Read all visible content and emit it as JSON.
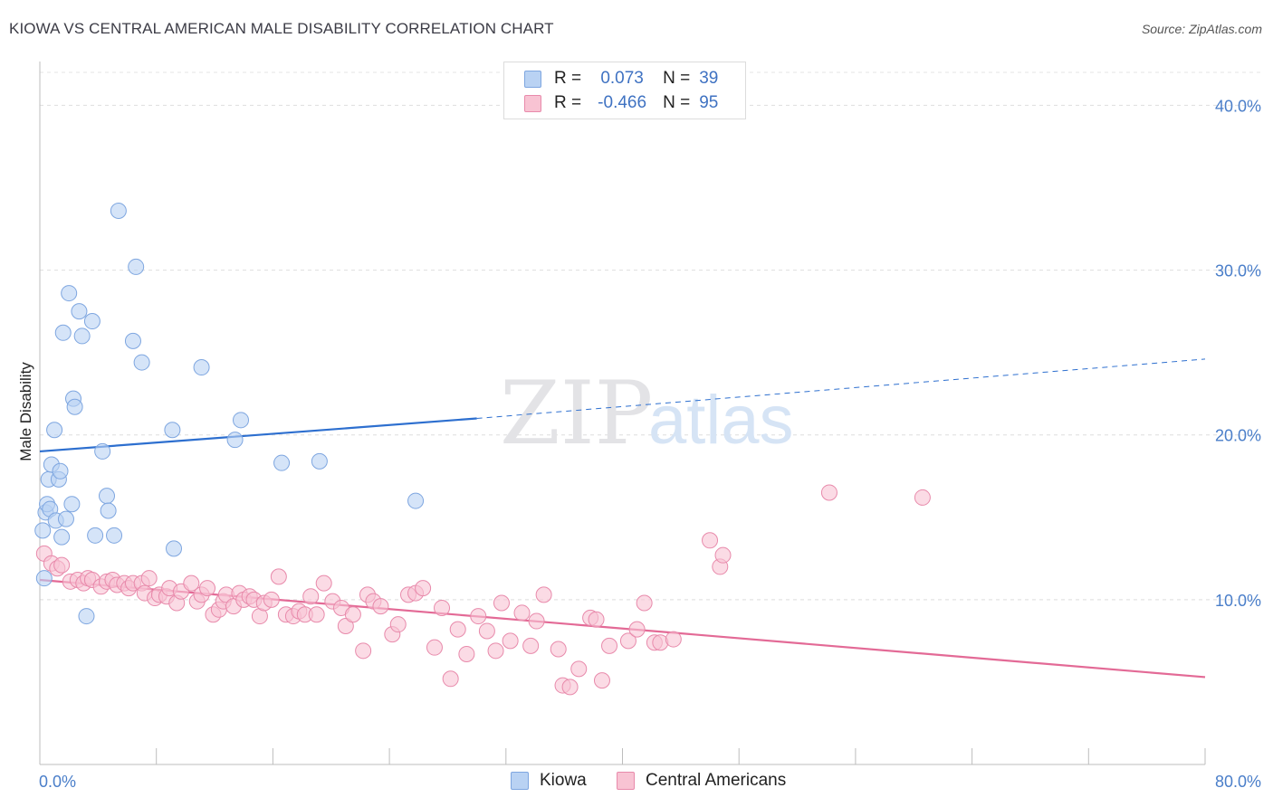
{
  "header": {
    "title": "KIOWA VS CENTRAL AMERICAN MALE DISABILITY CORRELATION CHART",
    "source": "Source: ZipAtlas.com"
  },
  "colors": {
    "kiowa_fill": "#b9d2f3",
    "kiowa_stroke": "#7ea6e0",
    "kiowa_line": "#2d6fcf",
    "central_fill": "#f8c3d3",
    "central_stroke": "#e88aab",
    "central_line": "#e36a96",
    "tick_text": "#4a7ec9"
  },
  "legend": {
    "rows": [
      {
        "r_label": "R =",
        "r_value": "0.073",
        "n_label": "N =",
        "n_value": "39"
      },
      {
        "r_label": "R =",
        "r_value": "-0.466",
        "n_label": "N =",
        "n_value": "95"
      }
    ]
  },
  "bottom_legend": {
    "kiowa": "Kiowa",
    "central": "Central Americans"
  },
  "watermark": {
    "zip": "ZIP",
    "atlas": "atlas"
  },
  "chart_data": {
    "type": "scatter",
    "xlabel": "",
    "ylabel": "Male Disability",
    "xlim": [
      0,
      80
    ],
    "ylim": [
      0,
      42
    ],
    "x_tick_labels": [
      "0.0%",
      "80.0%"
    ],
    "y_ticks": [
      10,
      20,
      30,
      40
    ],
    "y_tick_labels": [
      "10.0%",
      "20.0%",
      "30.0%",
      "40.0%"
    ],
    "grid": true,
    "legend_position": "top-center",
    "series": [
      {
        "name": "Kiowa",
        "points": [
          [
            0.2,
            14.2
          ],
          [
            0.3,
            11.3
          ],
          [
            0.4,
            15.3
          ],
          [
            0.5,
            15.8
          ],
          [
            0.6,
            17.3
          ],
          [
            0.7,
            15.5
          ],
          [
            0.8,
            18.2
          ],
          [
            1.0,
            20.3
          ],
          [
            1.1,
            14.8
          ],
          [
            1.3,
            17.3
          ],
          [
            1.4,
            17.8
          ],
          [
            1.5,
            13.8
          ],
          [
            1.6,
            26.2
          ],
          [
            1.8,
            14.9
          ],
          [
            2.0,
            28.6
          ],
          [
            2.2,
            15.8
          ],
          [
            2.3,
            22.2
          ],
          [
            2.4,
            21.7
          ],
          [
            2.7,
            27.5
          ],
          [
            2.9,
            26.0
          ],
          [
            3.2,
            9.0
          ],
          [
            3.6,
            26.9
          ],
          [
            3.8,
            13.9
          ],
          [
            4.3,
            19.0
          ],
          [
            4.6,
            16.3
          ],
          [
            4.7,
            15.4
          ],
          [
            5.1,
            13.9
          ],
          [
            5.4,
            33.6
          ],
          [
            6.4,
            25.7
          ],
          [
            6.6,
            30.2
          ],
          [
            7.0,
            24.4
          ],
          [
            9.1,
            20.3
          ],
          [
            9.2,
            13.1
          ],
          [
            11.1,
            24.1
          ],
          [
            13.4,
            19.7
          ],
          [
            13.8,
            20.9
          ],
          [
            16.6,
            18.3
          ],
          [
            19.2,
            18.4
          ],
          [
            25.8,
            16.0
          ]
        ],
        "trend": {
          "x_start": 0,
          "y_start": 19.0,
          "x_solid_end": 30,
          "y_solid_end": 21.0,
          "x_end": 80,
          "y_end": 24.6
        }
      },
      {
        "name": "Central Americans",
        "points": [
          [
            0.3,
            12.8
          ],
          [
            0.8,
            12.2
          ],
          [
            1.2,
            11.9
          ],
          [
            1.5,
            12.1
          ],
          [
            2.1,
            11.1
          ],
          [
            2.6,
            11.2
          ],
          [
            3.0,
            11.0
          ],
          [
            3.3,
            11.3
          ],
          [
            3.6,
            11.2
          ],
          [
            4.2,
            10.8
          ],
          [
            4.6,
            11.1
          ],
          [
            5.0,
            11.2
          ],
          [
            5.3,
            10.9
          ],
          [
            5.8,
            11.0
          ],
          [
            6.1,
            10.7
          ],
          [
            6.4,
            11.0
          ],
          [
            7.0,
            11.0
          ],
          [
            7.2,
            10.4
          ],
          [
            7.5,
            11.3
          ],
          [
            7.9,
            10.1
          ],
          [
            8.2,
            10.3
          ],
          [
            8.7,
            10.2
          ],
          [
            8.9,
            10.7
          ],
          [
            9.4,
            9.8
          ],
          [
            9.7,
            10.5
          ],
          [
            10.4,
            11.0
          ],
          [
            10.8,
            9.9
          ],
          [
            11.1,
            10.3
          ],
          [
            11.5,
            10.7
          ],
          [
            11.9,
            9.1
          ],
          [
            12.3,
            9.4
          ],
          [
            12.6,
            9.9
          ],
          [
            12.8,
            10.3
          ],
          [
            13.3,
            9.6
          ],
          [
            13.7,
            10.4
          ],
          [
            14.0,
            10.0
          ],
          [
            14.4,
            10.2
          ],
          [
            14.7,
            10.0
          ],
          [
            15.1,
            9.0
          ],
          [
            15.4,
            9.8
          ],
          [
            15.9,
            10.0
          ],
          [
            16.4,
            11.4
          ],
          [
            16.9,
            9.1
          ],
          [
            17.4,
            9.0
          ],
          [
            17.8,
            9.3
          ],
          [
            18.2,
            9.1
          ],
          [
            18.6,
            10.2
          ],
          [
            19.0,
            9.1
          ],
          [
            19.5,
            11.0
          ],
          [
            20.1,
            9.9
          ],
          [
            20.7,
            9.5
          ],
          [
            21.0,
            8.4
          ],
          [
            21.5,
            9.1
          ],
          [
            22.2,
            6.9
          ],
          [
            22.5,
            10.3
          ],
          [
            22.9,
            9.9
          ],
          [
            23.4,
            9.6
          ],
          [
            24.2,
            7.9
          ],
          [
            24.6,
            8.5
          ],
          [
            25.3,
            10.3
          ],
          [
            25.8,
            10.4
          ],
          [
            26.3,
            10.7
          ],
          [
            27.1,
            7.1
          ],
          [
            27.6,
            9.5
          ],
          [
            28.2,
            5.2
          ],
          [
            28.7,
            8.2
          ],
          [
            29.3,
            6.7
          ],
          [
            30.1,
            9.0
          ],
          [
            30.7,
            8.1
          ],
          [
            31.3,
            6.9
          ],
          [
            31.7,
            9.8
          ],
          [
            32.3,
            7.5
          ],
          [
            33.1,
            9.2
          ],
          [
            33.7,
            7.2
          ],
          [
            34.1,
            8.7
          ],
          [
            34.6,
            10.3
          ],
          [
            35.6,
            7.0
          ],
          [
            35.9,
            4.8
          ],
          [
            36.4,
            4.7
          ],
          [
            37.0,
            5.8
          ],
          [
            37.8,
            8.9
          ],
          [
            38.2,
            8.8
          ],
          [
            38.6,
            5.1
          ],
          [
            39.1,
            7.2
          ],
          [
            40.4,
            7.5
          ],
          [
            41.0,
            8.2
          ],
          [
            41.5,
            9.8
          ],
          [
            42.2,
            7.4
          ],
          [
            42.6,
            7.4
          ],
          [
            43.5,
            7.6
          ],
          [
            46.0,
            13.6
          ],
          [
            46.7,
            12.0
          ],
          [
            46.9,
            12.7
          ],
          [
            54.2,
            16.5
          ],
          [
            60.6,
            16.2
          ]
        ],
        "trend": {
          "x_start": 0,
          "y_start": 11.2,
          "x_end": 80,
          "y_end": 5.3
        }
      }
    ]
  }
}
